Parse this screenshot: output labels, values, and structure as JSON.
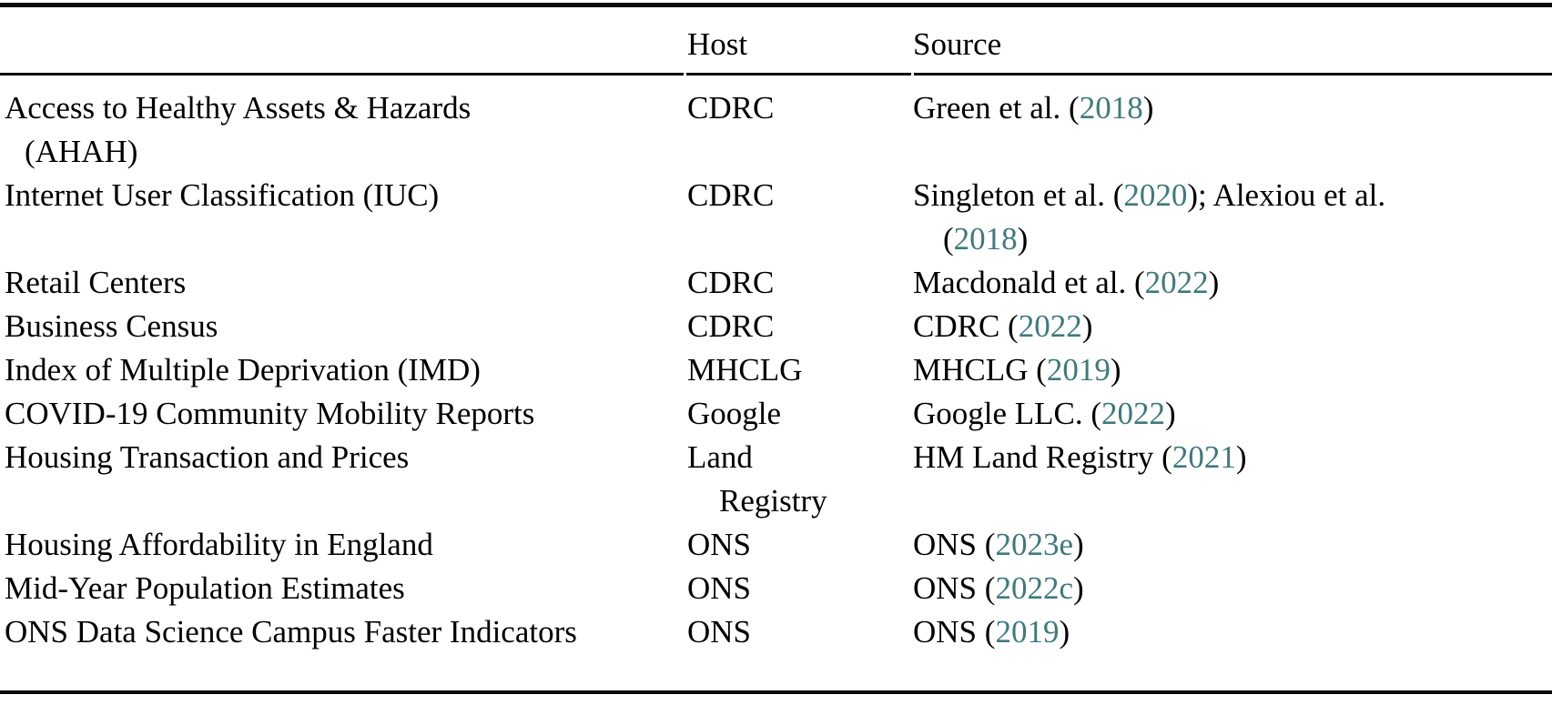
{
  "colors": {
    "text": "#000000",
    "rule": "#0a0a0a",
    "citation_link": "#3E7A7C",
    "background": "#FFFFFF"
  },
  "table": {
    "headers": {
      "dataset": "",
      "host": "Host",
      "source": "Source"
    },
    "rows": [
      {
        "dataset": [
          [
            {
              "t": "Access to Healthy Assets & Hazards"
            }
          ],
          [
            {
              "t": "(AHAH)"
            }
          ]
        ],
        "host": [
          [
            {
              "t": "CDRC"
            }
          ]
        ],
        "source": [
          [
            {
              "t": "Green et al. ("
            },
            {
              "t": "2018",
              "link": true
            },
            {
              "t": ")"
            }
          ]
        ]
      },
      {
        "dataset": [
          [
            {
              "t": "Internet User Classification (IUC)"
            }
          ]
        ],
        "host": [
          [
            {
              "t": "CDRC"
            }
          ]
        ],
        "source": [
          [
            {
              "t": "Singleton et al. ("
            },
            {
              "t": "2020",
              "link": true
            },
            {
              "t": "); Alexiou et al."
            }
          ],
          [
            {
              "t": "("
            },
            {
              "t": "2018",
              "link": true
            },
            {
              "t": ")"
            }
          ]
        ]
      },
      {
        "dataset": [
          [
            {
              "t": "Retail Centers"
            }
          ]
        ],
        "host": [
          [
            {
              "t": "CDRC"
            }
          ]
        ],
        "source": [
          [
            {
              "t": "Macdonald et al. ("
            },
            {
              "t": "2022",
              "link": true
            },
            {
              "t": ")"
            }
          ]
        ]
      },
      {
        "dataset": [
          [
            {
              "t": "Business Census"
            }
          ]
        ],
        "host": [
          [
            {
              "t": "CDRC"
            }
          ]
        ],
        "source": [
          [
            {
              "t": "CDRC ("
            },
            {
              "t": "2022",
              "link": true
            },
            {
              "t": ")"
            }
          ]
        ]
      },
      {
        "dataset": [
          [
            {
              "t": "Index of Multiple Deprivation (IMD)"
            }
          ]
        ],
        "host": [
          [
            {
              "t": "MHCLG"
            }
          ]
        ],
        "source": [
          [
            {
              "t": "MHCLG ("
            },
            {
              "t": "2019",
              "link": true
            },
            {
              "t": ")"
            }
          ]
        ]
      },
      {
        "dataset": [
          [
            {
              "t": "COVID-19 Community Mobility Reports"
            }
          ]
        ],
        "host": [
          [
            {
              "t": "Google"
            }
          ]
        ],
        "source": [
          [
            {
              "t": "Google LLC. ("
            },
            {
              "t": "2022",
              "link": true
            },
            {
              "t": ")"
            }
          ]
        ]
      },
      {
        "dataset": [
          [
            {
              "t": "Housing Transaction and Prices"
            }
          ]
        ],
        "host": [
          [
            {
              "t": "Land"
            }
          ],
          [
            {
              "t": "Registry"
            }
          ]
        ],
        "source": [
          [
            {
              "t": "HM Land Registry ("
            },
            {
              "t": "2021",
              "link": true
            },
            {
              "t": ")"
            }
          ]
        ]
      },
      {
        "dataset": [
          [
            {
              "t": "Housing Affordability in England"
            }
          ]
        ],
        "host": [
          [
            {
              "t": "ONS"
            }
          ]
        ],
        "source": [
          [
            {
              "t": "ONS ("
            },
            {
              "t": "2023e",
              "link": true
            },
            {
              "t": ")"
            }
          ]
        ]
      },
      {
        "dataset": [
          [
            {
              "t": "Mid-Year Population Estimates"
            }
          ]
        ],
        "host": [
          [
            {
              "t": "ONS"
            }
          ]
        ],
        "source": [
          [
            {
              "t": "ONS ("
            },
            {
              "t": "2022c",
              "link": true
            },
            {
              "t": ")"
            }
          ]
        ]
      },
      {
        "dataset": [
          [
            {
              "t": "ONS Data Science Campus Faster Indicators"
            }
          ]
        ],
        "host": [
          [
            {
              "t": "ONS"
            }
          ]
        ],
        "source": [
          [
            {
              "t": "ONS ("
            },
            {
              "t": "2019",
              "link": true
            },
            {
              "t": ")"
            }
          ]
        ]
      }
    ]
  }
}
